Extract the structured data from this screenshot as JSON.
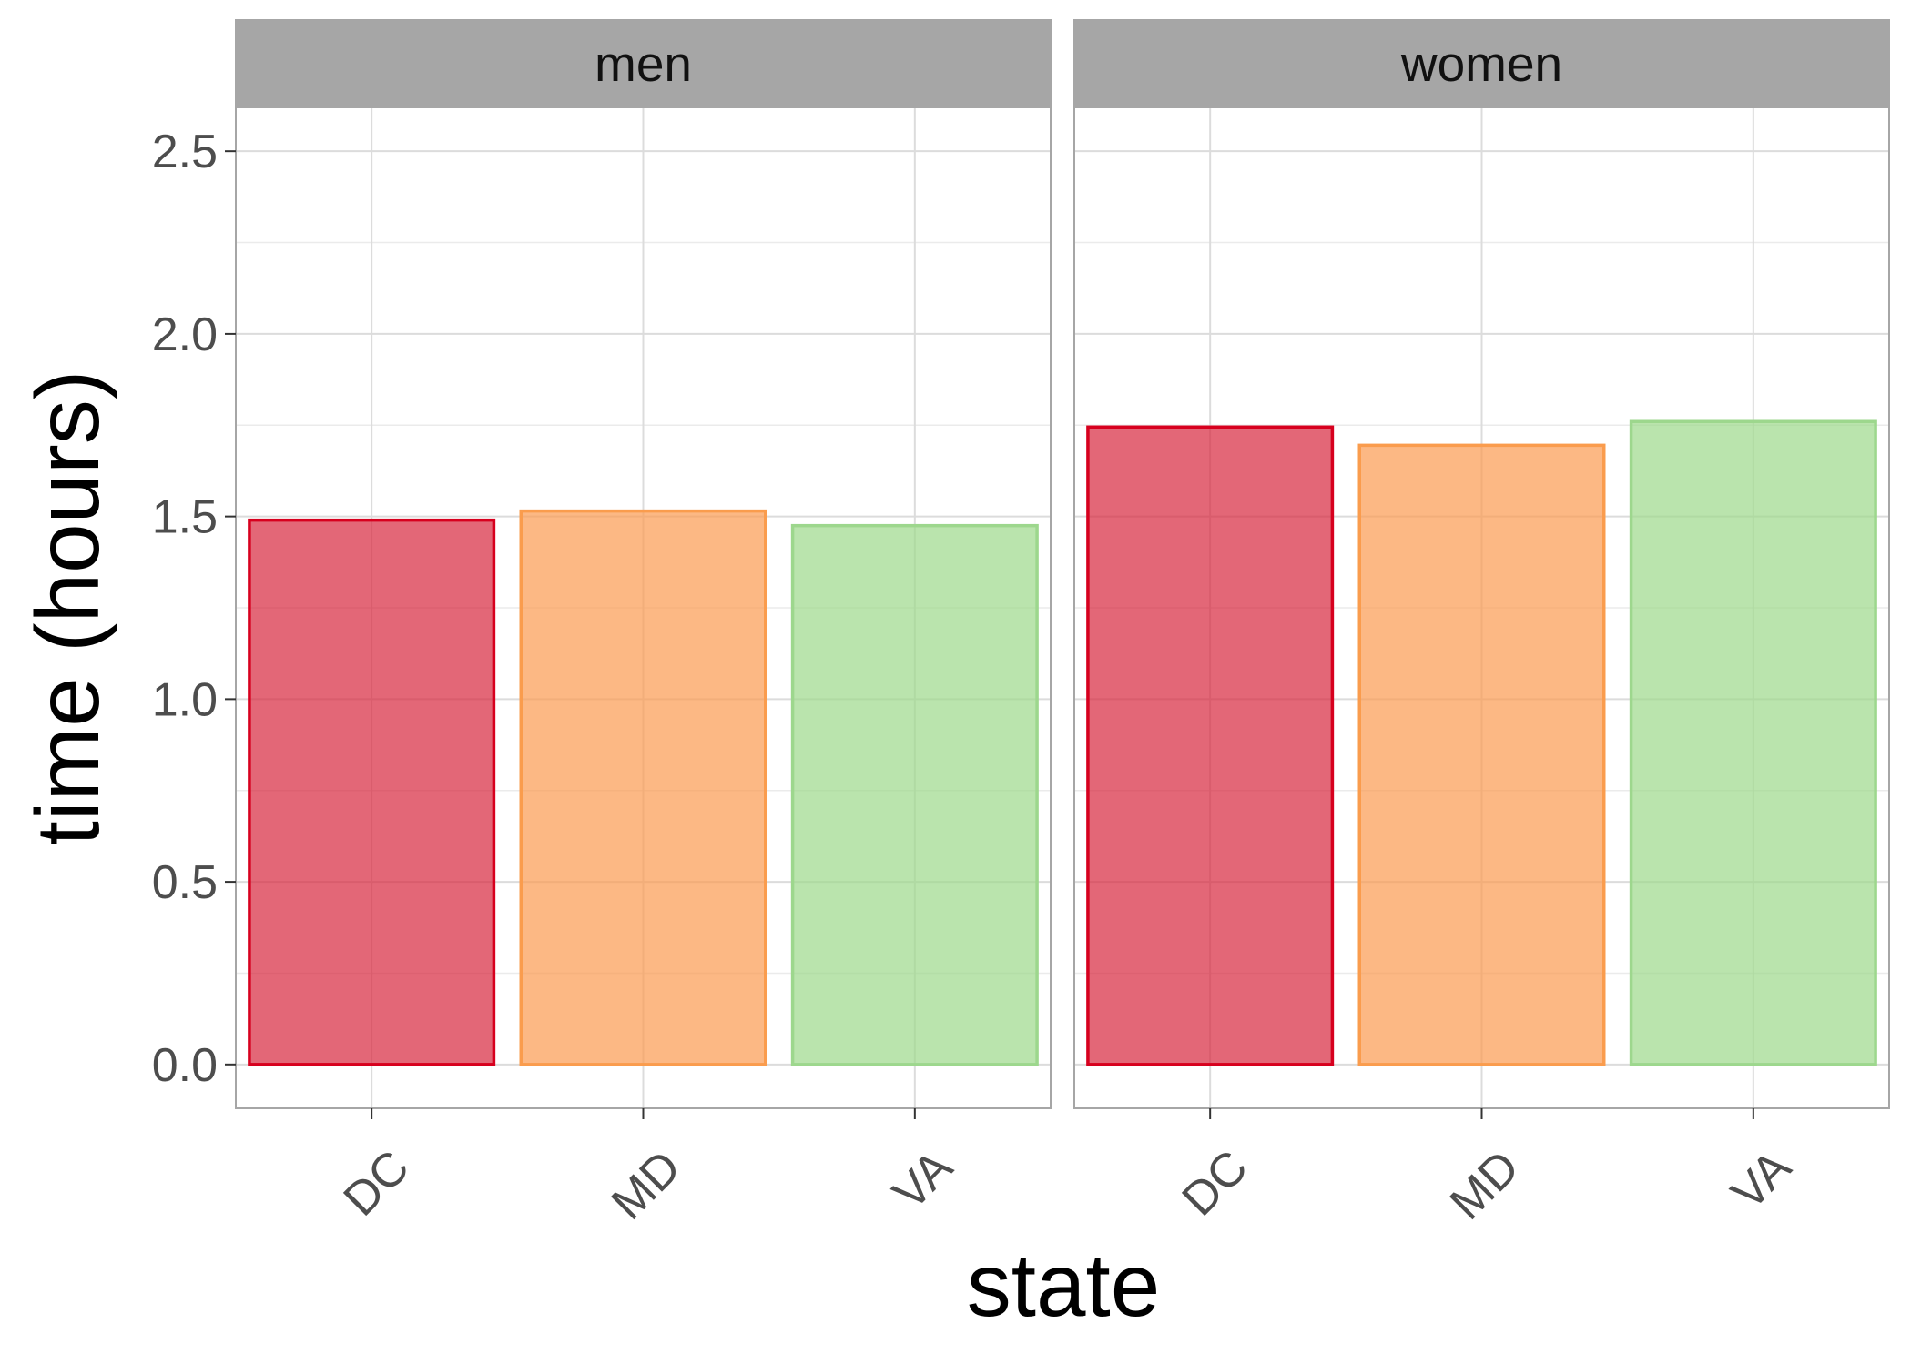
{
  "chart_data": {
    "type": "bar",
    "xlabel": "state",
    "ylabel": "time (hours)",
    "categories": [
      "DC",
      "MD",
      "VA"
    ],
    "ylim": [
      -0.12,
      2.62
    ],
    "yticks": [
      0.0,
      0.5,
      1.0,
      1.5,
      2.0,
      2.5
    ],
    "ytick_labels": [
      "0.0",
      "0.5",
      "1.0",
      "1.5",
      "2.0",
      "2.5"
    ],
    "grid": true,
    "legend": "none",
    "colors": {
      "DC": {
        "fill": "#d7263d",
        "stroke": "#d7001e"
      },
      "MD": {
        "fill": "#fb9a50",
        "stroke": "#fa9c4d"
      },
      "VA": {
        "fill": "#9cd88a",
        "stroke": "#9dd78d"
      }
    },
    "facets": [
      {
        "label": "men",
        "values": [
          1.49,
          1.515,
          1.475
        ]
      },
      {
        "label": "women",
        "values": [
          1.745,
          1.695,
          1.76
        ]
      }
    ]
  }
}
